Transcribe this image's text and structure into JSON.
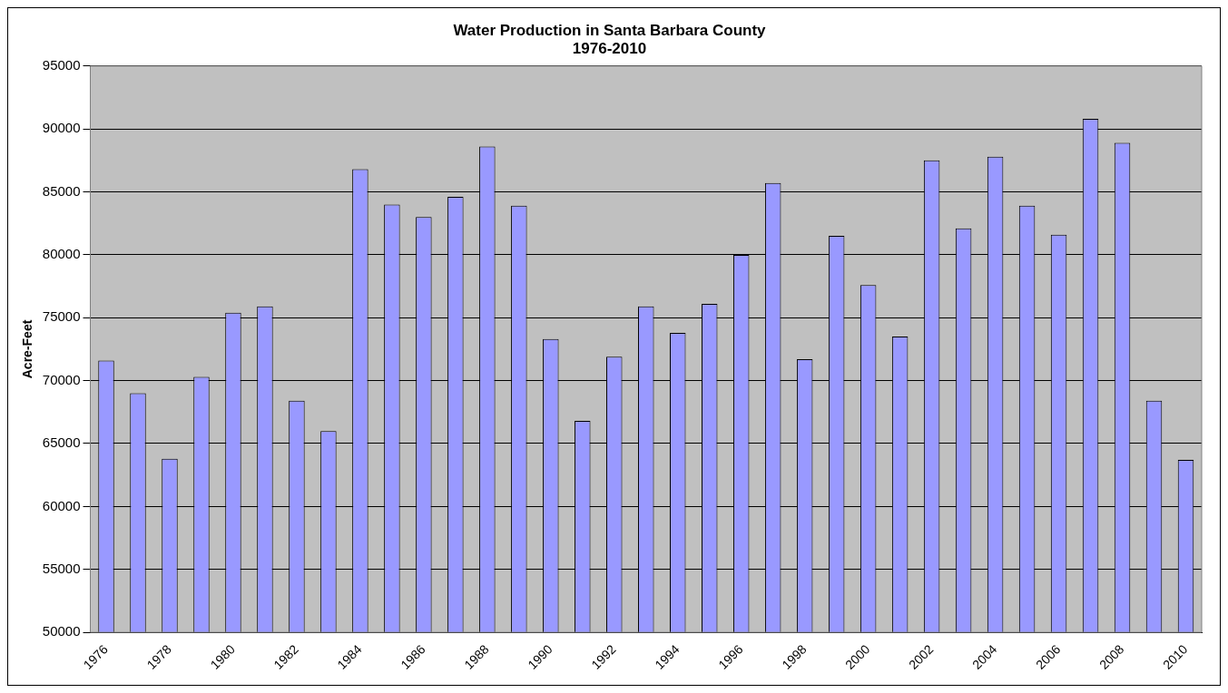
{
  "chart_data": {
    "type": "bar",
    "title": "Water Production in Santa Barbara County",
    "subtitle": "1976-2010",
    "ylabel": "Acre-Feet",
    "categories": [
      "1976",
      null,
      "1978",
      null,
      "1980",
      null,
      "1982",
      null,
      "1984",
      null,
      "1986",
      null,
      "1988",
      null,
      "1990",
      null,
      "1992",
      null,
      "1994",
      null,
      "1996",
      null,
      "1998",
      null,
      "2000",
      null,
      "2002",
      null,
      "2004",
      null,
      "2006",
      null,
      "2008",
      null,
      "2010"
    ],
    "values": [
      71600,
      69000,
      63800,
      70300,
      75400,
      75900,
      68400,
      66000,
      86800,
      84000,
      83000,
      84600,
      88600,
      83900,
      73300,
      66800,
      71900,
      75900,
      73800,
      76100,
      80000,
      85700,
      71700,
      81500,
      77600,
      73500,
      87500,
      82100,
      87800,
      83900,
      81600,
      90800,
      88900,
      68400,
      63700
    ],
    "color": "#9999ff",
    "ylim": [
      50000,
      95000
    ],
    "yticks": [
      50000,
      55000,
      60000,
      65000,
      70000,
      75000,
      80000,
      85000,
      90000,
      95000
    ],
    "grid": "y",
    "legend": false
  }
}
